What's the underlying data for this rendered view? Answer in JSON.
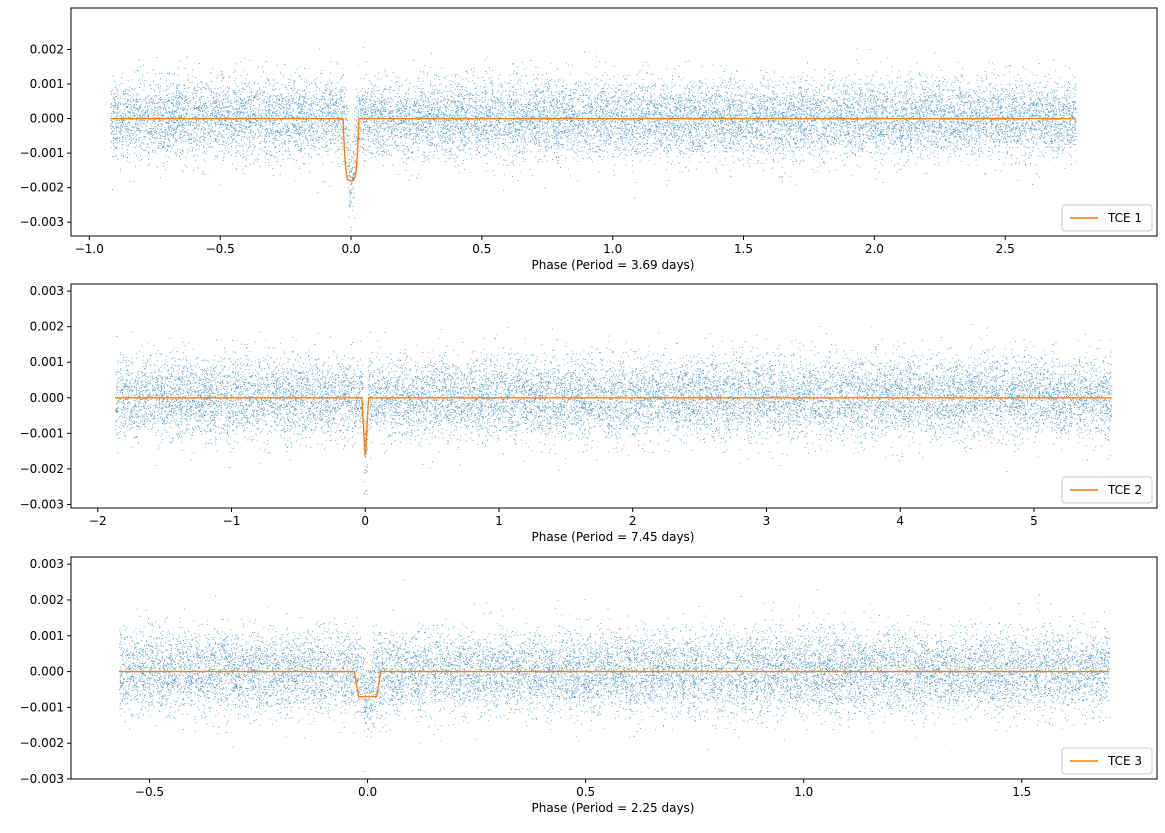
{
  "chart_data": [
    {
      "type": "scatter",
      "xlabel": "Phase (Period =  3.69 days)",
      "xlim": [
        -1.07,
        3.08
      ],
      "ylim": [
        -0.0034,
        0.0032
      ],
      "xticks": [
        -1.0,
        -0.5,
        0.0,
        0.5,
        1.0,
        1.5,
        2.0,
        2.5
      ],
      "xtick_labels": [
        "−1.0",
        "−0.5",
        "0.0",
        "0.5",
        "1.0",
        "1.5",
        "2.0",
        "2.5"
      ],
      "yticks": [
        0.002,
        0.001,
        0.0,
        -0.001,
        -0.002,
        -0.003
      ],
      "ytick_labels": [
        "0.002",
        "0.001",
        "0.000",
        "−0.001",
        "−0.002",
        "−0.003"
      ],
      "scatter": {
        "x_range": [
          -0.92,
          2.77
        ],
        "noise_sigma": 0.0008,
        "transit_center": 0.0,
        "transit_half_width": 0.02,
        "transit_depth": 0.0018,
        "color": "#1f77b4"
      },
      "model": {
        "name": "TCE 1",
        "color": "#ff7f0e",
        "x_range": [
          -0.92,
          2.77
        ],
        "transit_center": 0.0,
        "transit_half_width": 0.03,
        "transit_depth": 0.0018,
        "profile": "u"
      },
      "legend": {
        "label": "TCE 1",
        "position": "lower-right"
      }
    },
    {
      "type": "scatter",
      "xlabel": "Phase (Period =  7.45 days)",
      "xlim": [
        -2.2,
        5.92
      ],
      "ylim": [
        -0.0031,
        0.0032
      ],
      "xticks": [
        -2,
        -1,
        0,
        1,
        2,
        3,
        4,
        5
      ],
      "xtick_labels": [
        "−2",
        "−1",
        "0",
        "1",
        "2",
        "3",
        "4",
        "5"
      ],
      "yticks": [
        0.003,
        0.002,
        0.001,
        0.0,
        -0.001,
        -0.002,
        -0.003
      ],
      "ytick_labels": [
        "0.003",
        "0.002",
        "0.001",
        "0.000",
        "−0.001",
        "−0.002",
        "−0.003"
      ],
      "scatter": {
        "x_range": [
          -1.87,
          5.58
        ],
        "noise_sigma": 0.0008,
        "transit_center": 0.0,
        "transit_half_width": 0.02,
        "transit_depth": 0.0017,
        "color": "#1f77b4"
      },
      "model": {
        "name": "TCE 2",
        "color": "#ff7f0e",
        "x_range": [
          -1.87,
          5.58
        ],
        "transit_center": 0.0,
        "transit_half_width": 0.025,
        "transit_depth": 0.0017,
        "profile": "v"
      },
      "legend": {
        "label": "TCE 2",
        "position": "lower-right"
      }
    },
    {
      "type": "scatter",
      "xlabel": "Phase (Period =  2.25 days)",
      "xlim": [
        -0.68,
        1.81
      ],
      "ylim": [
        -0.003,
        0.0032
      ],
      "xticks": [
        -0.5,
        0.0,
        0.5,
        1.0,
        1.5
      ],
      "xtick_labels": [
        "−0.5",
        "0.0",
        "0.5",
        "1.0",
        "1.5"
      ],
      "yticks": [
        0.003,
        0.002,
        0.001,
        0.0,
        -0.001,
        -0.002,
        -0.003
      ],
      "ytick_labels": [
        "0.003",
        "0.002",
        "0.001",
        "0.000",
        "−0.001",
        "−0.002",
        "−0.003"
      ],
      "scatter": {
        "x_range": [
          -0.57,
          1.7
        ],
        "noise_sigma": 0.0008,
        "transit_center": 0.0,
        "transit_half_width": 0.015,
        "transit_depth": 0.0008,
        "color": "#1f77b4"
      },
      "model": {
        "name": "TCE 3",
        "color": "#ff7f0e",
        "x_range": [
          -0.57,
          1.7
        ],
        "transit_center": 0.0,
        "transit_half_width": 0.03,
        "transit_depth": 0.0007,
        "profile": "box"
      },
      "legend": {
        "label": "TCE 3",
        "position": "lower-right"
      }
    }
  ]
}
